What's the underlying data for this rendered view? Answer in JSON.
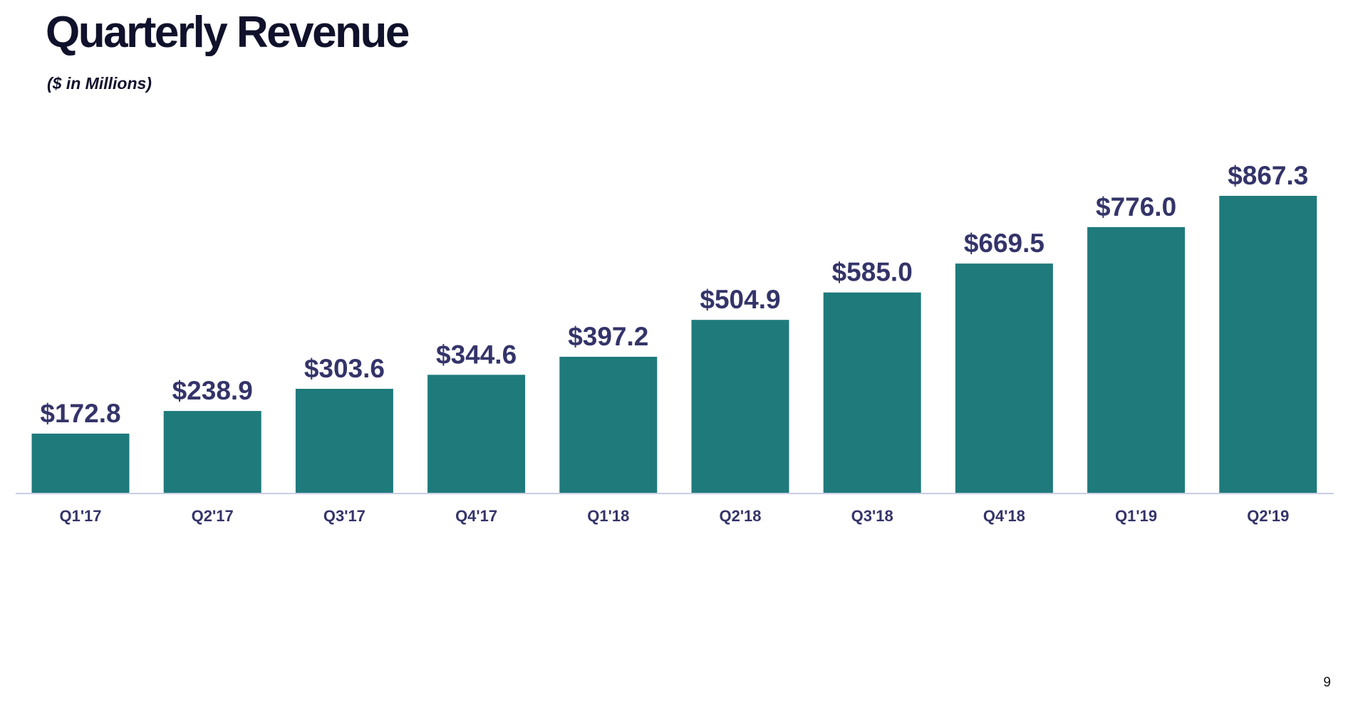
{
  "page": {
    "title": "Quarterly Revenue",
    "subtitle": "($ in Millions)",
    "page_number": "9"
  },
  "colors": {
    "bar": "#1f7a7c",
    "value_label": "#34346a",
    "tick_label": "#34346a",
    "axis": "#c9cde3"
  },
  "chart_data": {
    "type": "bar",
    "title": "Quarterly Revenue",
    "subtitle": "($ in Millions)",
    "xlabel": "",
    "ylabel": "",
    "categories": [
      "Q1'17",
      "Q2'17",
      "Q3'17",
      "Q4'17",
      "Q1'18",
      "Q2'18",
      "Q3'18",
      "Q4'18",
      "Q1'19",
      "Q2'19"
    ],
    "values": [
      172.8,
      238.9,
      303.6,
      344.6,
      397.2,
      504.9,
      585.0,
      669.5,
      776.0,
      867.3
    ],
    "value_labels": [
      "$172.8",
      "$238.9",
      "$303.6",
      "$344.6",
      "$397.2",
      "$504.9",
      "$585.0",
      "$669.5",
      "$776.0",
      "$867.3"
    ],
    "ylim": [
      0,
      867.3
    ],
    "grid": false,
    "legend": "none"
  }
}
